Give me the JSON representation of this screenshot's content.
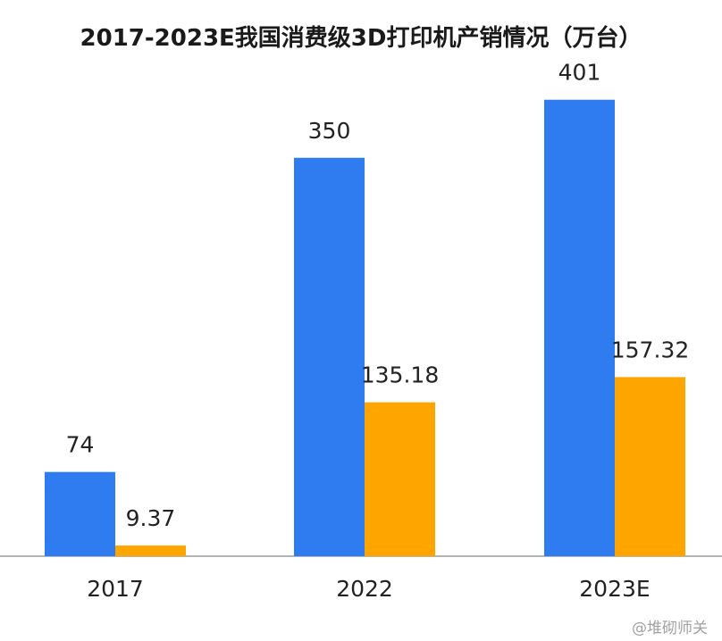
{
  "chart_data": {
    "type": "bar",
    "title": "2017-2023E我国消费级3D打印机产销情况（万台）",
    "categories": [
      "2017",
      "2022",
      "2023E"
    ],
    "series": [
      {
        "values": [
          74,
          350,
          401
        ],
        "labels": [
          "74",
          "350",
          "401"
        ],
        "color": "#2f7cf0"
      },
      {
        "values": [
          9.37,
          135.18,
          157.32
        ],
        "labels": [
          "9.37",
          "135.18",
          "157.32"
        ],
        "color": "#ffa500"
      }
    ],
    "xlabel": "",
    "ylabel": "",
    "ylim": [
      0,
      440
    ],
    "grid": false,
    "legend": "none"
  },
  "watermark": "@堆砌师关"
}
